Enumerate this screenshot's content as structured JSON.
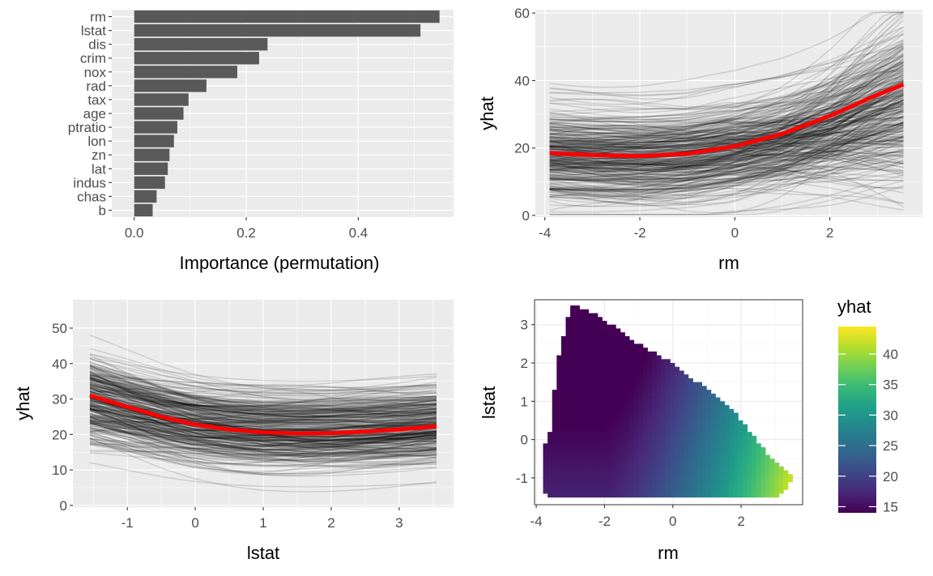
{
  "colors": {
    "panel_bg": "#ebebeb",
    "grid_major": "#ffffff",
    "bar_fill": "#595959",
    "ice_line": "#000000",
    "pdp_line": "#ff0000",
    "viridis": [
      "#440154",
      "#482878",
      "#3e4a89",
      "#31688e",
      "#26828e",
      "#1f9e89",
      "#35b779",
      "#6ece58",
      "#b5de2b",
      "#fde725"
    ]
  },
  "chart_data": [
    {
      "type": "bar",
      "orientation": "horizontal",
      "categories": [
        "rm",
        "lstat",
        "dis",
        "crim",
        "nox",
        "rad",
        "tax",
        "age",
        "ptratio",
        "lon",
        "zn",
        "lat",
        "indus",
        "chas",
        "b"
      ],
      "values": [
        0.545,
        0.511,
        0.238,
        0.223,
        0.184,
        0.129,
        0.097,
        0.088,
        0.077,
        0.071,
        0.063,
        0.06,
        0.055,
        0.04,
        0.033
      ],
      "xlabel": "Importance (permutation)",
      "ylabel": "",
      "xlim": [
        -0.04,
        0.57
      ],
      "xticks": [
        "0.0",
        "0.2",
        "0.4"
      ],
      "xtick_values": [
        0,
        0.2,
        0.4
      ]
    },
    {
      "type": "line",
      "subtype": "ice",
      "xlabel": "rm",
      "ylabel": "yhat",
      "xlim": [
        -4.2,
        3.95
      ],
      "ylim": [
        -0.5,
        61
      ],
      "xticks": [
        "-4",
        "-2",
        "0",
        "2"
      ],
      "xtick_values": [
        -4,
        -2,
        0,
        2
      ],
      "yticks": [
        "0",
        "20",
        "40",
        "60"
      ],
      "ytick_values": [
        0,
        20,
        40,
        60
      ],
      "pdp": {
        "x": [
          -3.9,
          -3,
          -2,
          -1,
          0,
          1,
          2,
          3,
          3.55
        ],
        "y": [
          18.5,
          17.9,
          17.6,
          18.3,
          20.5,
          24.2,
          29.5,
          35.8,
          38.8
        ]
      },
      "ice_curves": 330
    },
    {
      "type": "line",
      "subtype": "ice",
      "xlabel": "lstat",
      "ylabel": "yhat",
      "xlim": [
        -1.8,
        3.8
      ],
      "ylim": [
        -0.5,
        58
      ],
      "xticks": [
        "-1",
        "0",
        "1",
        "2",
        "3"
      ],
      "xtick_values": [
        -1,
        0,
        1,
        2,
        3
      ],
      "yticks": [
        "0",
        "10",
        "20",
        "30",
        "40",
        "50"
      ],
      "ytick_values": [
        0,
        10,
        20,
        30,
        40,
        50
      ],
      "pdp": {
        "x": [
          -1.55,
          -1,
          -0.5,
          0,
          0.5,
          1,
          1.5,
          2,
          2.5,
          3,
          3.55
        ],
        "y": [
          31.0,
          27.8,
          25.0,
          22.8,
          21.4,
          20.6,
          20.3,
          20.4,
          20.8,
          21.4,
          22.3
        ]
      },
      "ice_curves": 330
    },
    {
      "type": "heatmap",
      "xlabel": "rm",
      "ylabel": "lstat",
      "xlim": [
        -4.05,
        3.8
      ],
      "ylim": [
        -1.7,
        3.65
      ],
      "xticks": [
        "-4",
        "-2",
        "0",
        "2"
      ],
      "xtick_values": [
        -4,
        -2,
        0,
        2
      ],
      "yticks": [
        "-1",
        "0",
        "1",
        "2",
        "3"
      ],
      "ytick_values": [
        -1,
        0,
        1,
        2,
        3
      ],
      "region_y": [
        -1.5,
        3.5
      ],
      "region_left": [
        [
          -1.5,
          -3.5
        ],
        [
          -1.4,
          -3.8
        ],
        [
          -0.75,
          -3.8
        ],
        [
          -0.1,
          -3.75
        ],
        [
          0.2,
          -3.6
        ],
        [
          1.0,
          -3.5
        ],
        [
          2.0,
          -3.4
        ],
        [
          3.0,
          -3.1
        ],
        [
          3.5,
          -3.0
        ]
      ],
      "region_right": [
        [
          -1.5,
          3.05
        ],
        [
          -1.3,
          3.3
        ],
        [
          -1.0,
          3.5
        ],
        [
          -0.8,
          3.25
        ],
        [
          -0.2,
          2.6
        ],
        [
          0.4,
          2.1
        ],
        [
          1.0,
          1.5
        ],
        [
          1.5,
          0.7
        ],
        [
          2.0,
          0.0
        ],
        [
          2.5,
          -1.0
        ],
        [
          3.0,
          -1.8
        ],
        [
          3.3,
          -2.3
        ],
        [
          3.5,
          -2.8
        ]
      ],
      "legend_title": "yhat",
      "legend_ticks": [
        "15",
        "20",
        "25",
        "30",
        "35",
        "40"
      ],
      "legend_tick_values": [
        15,
        20,
        25,
        30,
        35,
        40
      ],
      "value_range": [
        14,
        44.5
      ]
    }
  ]
}
